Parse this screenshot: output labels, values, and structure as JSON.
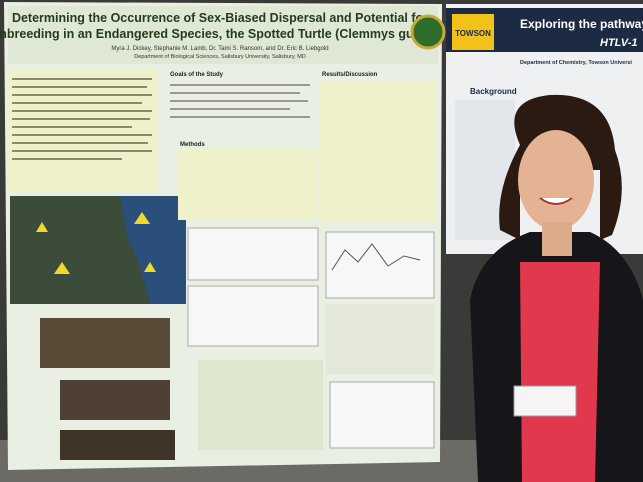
{
  "left_poster": {
    "title_line1": "Determining the Occurrence of Sex-Biased Dispersal and Potential for",
    "title_line2": "Inbreeding in an Endangered Species, the Spotted Turtle (Clemmys guttata)",
    "authors": "Myra J. Dickey, Stephanie M. Lamb, Dr. Tami S. Ransom, and Dr. Eric B. Liebgold",
    "affiliation": "Department of Biological Sciences, Salisbury University, Salisbury, MD",
    "sections": [
      "Goals of the Study",
      "Methods",
      "Results/Discussion"
    ]
  },
  "right_poster": {
    "title": "Exploring the pathway",
    "subtitle": "HTLV-1",
    "logo": "TOWSON",
    "department": "Department of Chemistry, Towson Universi",
    "section": "Background"
  }
}
